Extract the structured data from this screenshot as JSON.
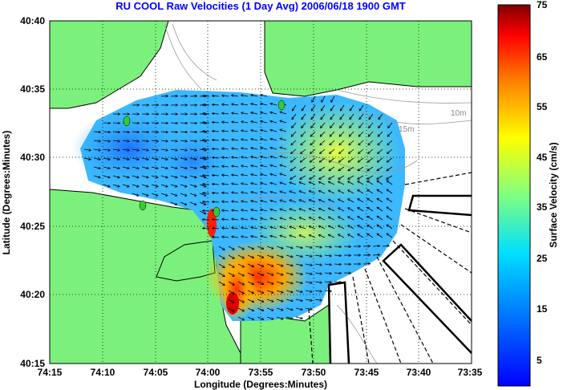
{
  "title": "RU COOL Raw Velocities (1 Day Avg) 2006/06/18 1900 GMT",
  "map": {
    "xlabel": "Longitude (Degrees:Minutes)",
    "ylabel": "Latitude (Degrees:Minutes)",
    "x_ticks": [
      "74:15",
      "74:10",
      "74:05",
      "74:00",
      "73:55",
      "73:50",
      "73:45",
      "73:40",
      "73:35"
    ],
    "y_ticks": [
      "40:40",
      "40:35",
      "40:30",
      "40:25",
      "40:20",
      "40:15"
    ],
    "contour_labels": [
      "10m",
      "15m"
    ],
    "colors": {
      "land": "#7CF07C",
      "water": "#ffffff",
      "gridlines": "#000000",
      "station": "#33cc33"
    }
  },
  "colorbar": {
    "label": "Surface Velocity (cm/s)",
    "ticks": [
      "75",
      "65",
      "55",
      "45",
      "35",
      "25",
      "15",
      "5"
    ],
    "range": [
      0,
      75
    ],
    "colormap": "jet"
  },
  "chart_data": {
    "type": "heatmap",
    "title": "RU COOL Raw Velocities (1 Day Avg) 2006/06/18 1900 GMT",
    "xlabel": "Longitude (Degrees:Minutes)",
    "ylabel": "Latitude (Degrees:Minutes)",
    "x_range": [
      "74:15",
      "73:35"
    ],
    "y_range": [
      "40:15",
      "40:40"
    ],
    "colorbar_label": "Surface Velocity (cm/s)",
    "colorbar_range": [
      0,
      75
    ],
    "approx_speed_regions": [
      {
        "region": "northwest bay",
        "speed_cm_s": 10
      },
      {
        "region": "central bay",
        "speed_cm_s": 25
      },
      {
        "region": "northeast",
        "speed_cm_s": 35
      },
      {
        "region": "south near 74:00 40:20",
        "speed_cm_s": 55
      },
      {
        "region": "channel near 74:01 40:25",
        "speed_cm_s": 70
      }
    ]
  }
}
